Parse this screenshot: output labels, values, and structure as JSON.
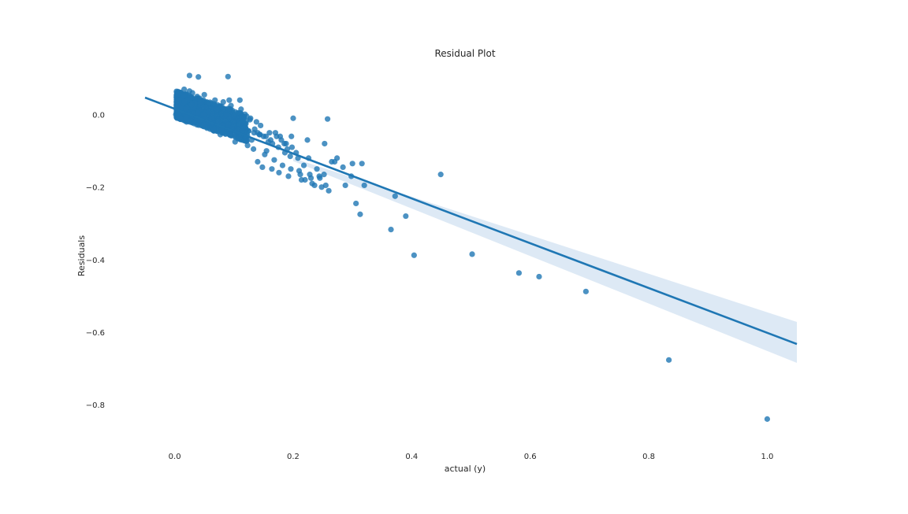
{
  "chart_data": {
    "type": "scatter",
    "title": "Residual Plot",
    "xlabel": "actual (y)",
    "ylabel": "Residuals",
    "xlim": [
      -0.07,
      1.05
    ],
    "ylim": [
      -0.9,
      0.11
    ],
    "xticks": [
      0.0,
      0.2,
      0.4,
      0.6,
      0.8,
      1.0
    ],
    "xtick_labels": [
      "0.0",
      "0.2",
      "0.4",
      "0.6",
      "0.8",
      "1.0"
    ],
    "yticks": [
      0.0,
      -0.2,
      -0.4,
      -0.6,
      -0.8
    ],
    "ytick_labels": [
      "0.0",
      "−0.2",
      "−0.4",
      "−0.6",
      "−0.8"
    ],
    "grid": false,
    "point_color": "#1f77b4",
    "line_color": "#1f77b4",
    "band_color": "#c6dbef",
    "regression_line": {
      "x": [
        -0.05,
        1.05
      ],
      "y": [
        0.047,
        -0.633
      ]
    },
    "confidence_band": {
      "x": [
        0.2,
        1.05
      ],
      "upper": [
        -0.12,
        -0.572
      ],
      "lower": [
        -0.128,
        -0.685
      ]
    },
    "points": {
      "x": [
        0.449,
        0.258,
        0.2,
        0.372,
        0.39,
        0.365,
        0.404,
        0.502,
        0.581,
        0.615,
        0.694,
        0.834,
        1.0,
        0.306,
        0.313,
        0.316,
        0.3,
        0.288,
        0.274,
        0.265,
        0.253,
        0.244,
        0.236,
        0.23,
        0.224,
        0.218,
        0.212,
        0.205,
        0.197,
        0.19,
        0.185,
        0.178,
        0.17,
        0.162,
        0.155,
        0.148,
        0.14,
        0.32,
        0.298,
        0.26,
        0.252,
        0.24,
        0.226,
        0.22,
        0.208,
        0.195,
        0.186,
        0.175,
        0.165,
        0.158,
        0.15,
        0.143,
        0.135,
        0.125,
        0.118,
        0.11,
        0.1,
        0.092,
        0.085,
        0.078,
        0.07,
        0.062,
        0.055,
        0.048,
        0.04,
        0.032,
        0.025,
        0.018,
        0.012,
        0.006,
        0.003,
        0.015,
        0.028,
        0.038,
        0.052,
        0.065,
        0.075,
        0.088,
        0.097,
        0.108,
        0.115,
        0.128,
        0.138,
        0.145,
        0.16,
        0.172,
        0.18,
        0.188,
        0.198,
        0.012,
        0.03,
        0.092,
        0.11,
        0.02,
        0.045,
        0.06,
        0.08,
        0.105,
        0.13,
        0.01,
        0.035,
        0.058,
        0.072,
        0.09,
        0.12,
        0.14,
        0.005,
        0.022,
        0.042,
        0.068,
        0.082,
        0.095,
        0.112,
        0.05,
        0.038,
        0.025,
        0.008,
        0.016,
        0.066,
        0.077,
        0.102,
        0.123,
        0.133,
        0.152,
        0.168,
        0.182,
        0.196,
        0.21,
        0.228,
        0.245,
        0.255,
        0.27,
        0.284,
        0.164,
        0.176,
        0.192,
        0.214,
        0.232,
        0.248,
        0.004,
        0.014,
        0.024,
        0.034,
        0.044,
        0.054,
        0.064,
        0.074,
        0.084,
        0.094,
        0.104,
        0.114,
        0.124,
        0.134,
        0.144,
        0.154,
        0.009,
        0.019,
        0.029,
        0.039,
        0.049,
        0.059,
        0.069,
        0.079,
        0.089,
        0.099,
        0.002,
        0.011,
        0.021,
        0.031,
        0.041,
        0.051,
        0.061,
        0.071,
        0.081,
        0.091,
        0.007,
        0.017,
        0.027,
        0.037,
        0.047,
        0.057,
        0.067,
        0.087,
        0.107,
        0.127
      ],
      "y": [
        -0.165,
        -0.012,
        -0.01,
        -0.225,
        -0.28,
        -0.317,
        -0.388,
        -0.385,
        -0.437,
        -0.447,
        -0.488,
        -0.677,
        -0.84,
        -0.245,
        -0.275,
        -0.135,
        -0.135,
        -0.195,
        -0.12,
        -0.13,
        -0.08,
        -0.17,
        -0.195,
        -0.175,
        -0.07,
        -0.14,
        -0.165,
        -0.105,
        -0.06,
        -0.095,
        -0.08,
        -0.06,
        -0.05,
        -0.07,
        -0.1,
        -0.145,
        -0.13,
        -0.195,
        -0.17,
        -0.21,
        -0.165,
        -0.15,
        -0.12,
        -0.18,
        -0.12,
        -0.115,
        -0.105,
        -0.09,
        -0.08,
        -0.075,
        -0.06,
        -0.055,
        -0.04,
        -0.045,
        -0.03,
        -0.025,
        -0.045,
        -0.03,
        -0.01,
        -0.035,
        -0.02,
        -0.005,
        -0.03,
        0.01,
        -0.015,
        -0.02,
        0.0,
        -0.01,
        0.01,
        0.0,
        0.02,
        0.03,
        0.04,
        0.03,
        0.025,
        0.02,
        0.015,
        0.01,
        0.005,
        0.0,
        -0.005,
        -0.01,
        -0.02,
        -0.03,
        -0.05,
        -0.06,
        -0.07,
        -0.08,
        -0.09,
        0.05,
        0.06,
        0.04,
        0.04,
        -0.02,
        -0.03,
        -0.04,
        -0.05,
        -0.06,
        -0.07,
        0.005,
        -0.005,
        -0.015,
        -0.025,
        -0.03,
        -0.04,
        -0.05,
        0.03,
        0.035,
        0.045,
        0.04,
        0.035,
        0.025,
        0.015,
        0.055,
        0.05,
        0.065,
        0.04,
        0.07,
        -0.045,
        -0.055,
        -0.075,
        -0.085,
        -0.095,
        -0.11,
        -0.125,
        -0.14,
        -0.15,
        -0.155,
        -0.165,
        -0.175,
        -0.195,
        -0.13,
        -0.145,
        -0.15,
        -0.16,
        -0.17,
        -0.18,
        -0.19,
        -0.2,
        0.01,
        0.008,
        0.005,
        0.0,
        -0.005,
        -0.01,
        -0.015,
        -0.02,
        -0.025,
        -0.03,
        -0.035,
        -0.04,
        -0.045,
        -0.05,
        -0.055,
        -0.06,
        0.025,
        0.02,
        0.015,
        0.01,
        0.005,
        0.0,
        -0.005,
        -0.01,
        -0.015,
        -0.02,
        0.0,
        -0.005,
        -0.01,
        -0.015,
        -0.02,
        -0.025,
        -0.03,
        -0.035,
        -0.04,
        -0.045,
        0.015,
        0.02,
        0.025,
        0.018,
        0.012,
        0.008,
        0.004,
        -0.002,
        -0.008,
        -0.014
      ]
    },
    "extra_points": {
      "x": [
        0.025,
        0.04,
        0.09
      ],
      "y": [
        0.108,
        0.104,
        0.105
      ]
    }
  }
}
